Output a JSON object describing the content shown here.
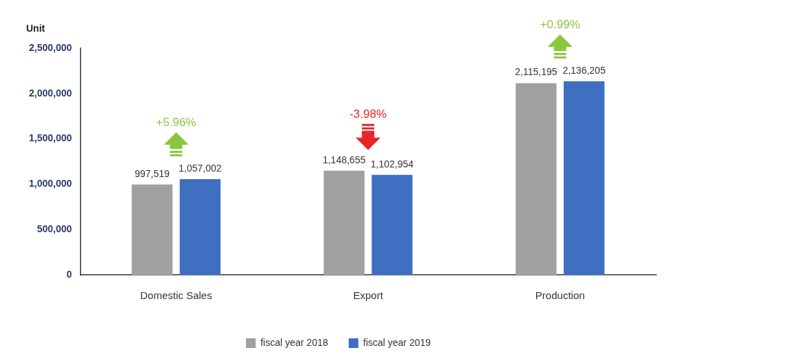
{
  "chart_data": {
    "type": "bar",
    "y_label": "Unit",
    "categories": [
      "Domestic Sales",
      "Export",
      "Production"
    ],
    "series": [
      {
        "name": "fiscal year 2018",
        "color": "#a0a0a0",
        "values": [
          997519,
          1148655,
          2115195
        ],
        "value_labels": [
          "997,519",
          "1,148,655",
          "2,115,195"
        ]
      },
      {
        "name": "fiscal year 2019",
        "color": "#3f6fc0",
        "values": [
          1057002,
          1102954,
          2136205
        ],
        "value_labels": [
          "1,057,002",
          "1,102,954",
          "2,136,205"
        ]
      }
    ],
    "ylim": [
      0,
      2500000
    ],
    "yticks": [
      0,
      {
        "value": 500000,
        "label": "500,000"
      },
      {
        "value": 1000000,
        "label": "1,000,000"
      },
      {
        "value": 1500000,
        "label": "1,500,000"
      },
      {
        "value": 2000000,
        "label": "2,000,000"
      },
      {
        "value": 2500000,
        "label": "2,500,000"
      }
    ],
    "grid": false,
    "legend": "bottom",
    "data_labels": true,
    "annotations": [
      {
        "category": "Domestic Sales",
        "text": "+5.96%",
        "color": "#8cc63f"
      },
      {
        "category": "Export",
        "text": "-3.98%",
        "color": "#e8262a"
      },
      {
        "category": "Production",
        "text": "+0.99%",
        "color": "#8cc63f"
      }
    ]
  }
}
